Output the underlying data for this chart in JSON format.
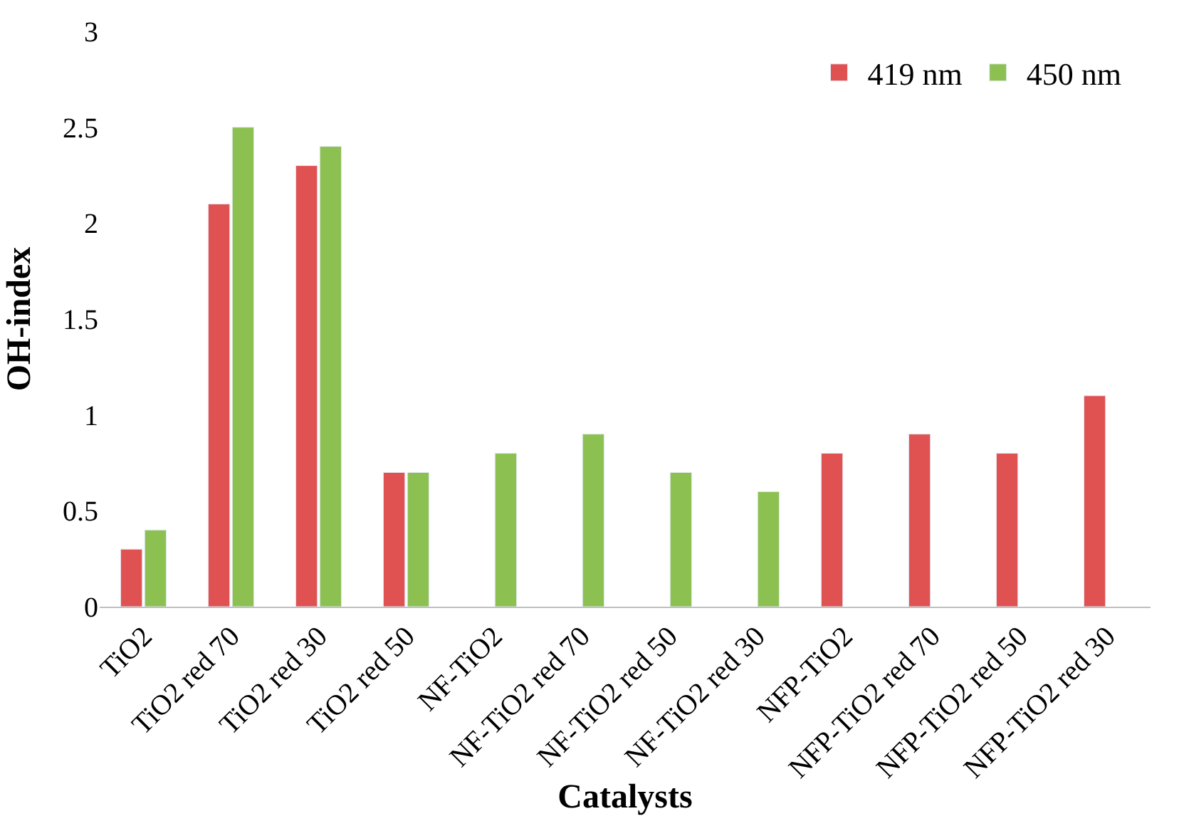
{
  "chart_data": {
    "type": "bar",
    "xlabel": "Catalysts",
    "ylabel": "OH-index",
    "categories": [
      "TiO2",
      "TiO2 red 70",
      "TiO2 red 30",
      "TiO2 red 50",
      "NF-TiO2",
      "NF-TiO2 red 70",
      "NF-TiO2 red 50",
      "NF-TiO2 red 30",
      "NFP-TiO2",
      "NFP-TiO2 red 70",
      "NFP-TiO2 red 50",
      "NFP-TiO2 red 30"
    ],
    "series": [
      {
        "name": "419 nm",
        "color": "#e05252",
        "values": [
          0.3,
          2.1,
          2.3,
          0.7,
          null,
          null,
          null,
          null,
          0.8,
          0.9,
          0.8,
          1.1
        ]
      },
      {
        "name": "450 nm",
        "color": "#8cc152",
        "values": [
          0.4,
          2.5,
          2.4,
          0.7,
          0.8,
          0.9,
          0.7,
          0.6,
          null,
          null,
          null,
          null
        ]
      }
    ],
    "ylim": [
      0,
      3
    ],
    "yticks": [
      0,
      0.5,
      1,
      1.5,
      2,
      2.5,
      3
    ],
    "grid": false,
    "legend": "top right"
  }
}
